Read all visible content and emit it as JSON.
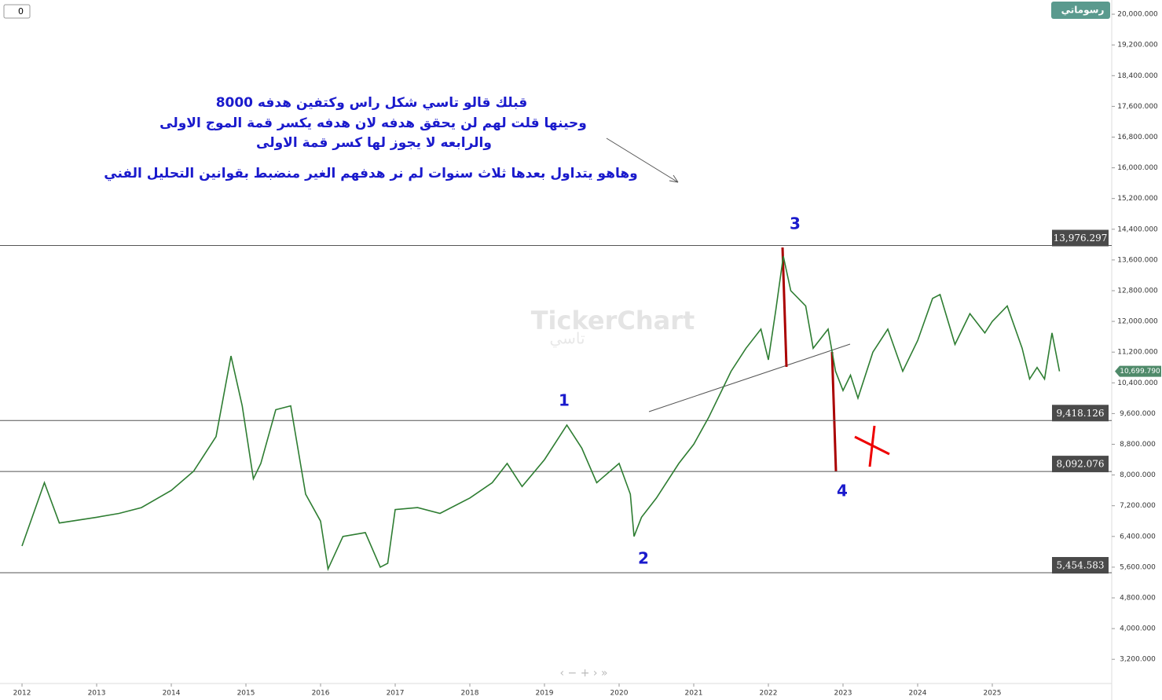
{
  "chart_data": {
    "type": "line",
    "x": [
      2012.0,
      2012.3,
      2012.5,
      2013.0,
      2013.3,
      2013.6,
      2014.0,
      2014.3,
      2014.6,
      2014.8,
      2014.95,
      2015.1,
      2015.2,
      2015.4,
      2015.6,
      2015.8,
      2016.0,
      2016.1,
      2016.3,
      2016.6,
      2016.8,
      2016.9,
      2017.0,
      2017.3,
      2017.6,
      2018.0,
      2018.3,
      2018.5,
      2018.7,
      2019.0,
      2019.3,
      2019.5,
      2019.7,
      2020.0,
      2020.15,
      2020.2,
      2020.3,
      2020.5,
      2020.8,
      2021.0,
      2021.2,
      2021.5,
      2021.7,
      2021.9,
      2022.0,
      2022.1,
      2022.2,
      2022.3,
      2022.5,
      2022.6,
      2022.8,
      2022.9,
      2023.0,
      2023.1,
      2023.2,
      2023.4,
      2023.6,
      2023.8,
      2024.0,
      2024.2,
      2024.3,
      2024.5,
      2024.7,
      2024.9,
      2025.0,
      2025.2,
      2025.4,
      2025.5,
      2025.6,
      2025.7,
      2025.8,
      2025.9
    ],
    "values": [
      6150,
      7800,
      6750,
      6900,
      7000,
      7150,
      7600,
      8100,
      9000,
      11100,
      9800,
      7900,
      8300,
      9700,
      9800,
      7500,
      6800,
      5550,
      6400,
      6500,
      5600,
      5700,
      7100,
      7150,
      7000,
      7400,
      7800,
      8300,
      7700,
      8400,
      9300,
      8700,
      7800,
      8300,
      7500,
      6400,
      6900,
      7400,
      8300,
      8800,
      9500,
      10700,
      11300,
      11800,
      11000,
      12300,
      13700,
      12800,
      12400,
      11300,
      11800,
      10700,
      10200,
      10600,
      10000,
      11200,
      11800,
      10700,
      11500,
      12600,
      12700,
      11400,
      12200,
      11700,
      12000,
      12400,
      11300,
      10500,
      10800,
      10500,
      11700,
      10700
    ],
    "color": "#2e7d32",
    "xlim": [
      2011.705,
      2026.6
    ],
    "xticks": [
      2012,
      2013,
      2014,
      2015,
      2016,
      2017,
      2018,
      2019,
      2020,
      2021,
      2022,
      2023,
      2024,
      2025
    ],
    "ylim": [
      2570,
      20370
    ],
    "yticks": [
      {
        "value": 3200,
        "label": "3,200.000"
      },
      {
        "value": 4000,
        "label": "4,000.000"
      },
      {
        "value": 4800,
        "label": "4,800.000"
      },
      {
        "value": 5600,
        "label": "5,600.000"
      },
      {
        "value": 6400,
        "label": "6,400.000"
      },
      {
        "value": 7200,
        "label": "7,200.000"
      },
      {
        "value": 8000,
        "label": "8,000.000"
      },
      {
        "value": 8800,
        "label": "8,800.000"
      },
      {
        "value": 9600,
        "label": "9,600.000"
      },
      {
        "value": 10400,
        "label": "10,400.000"
      },
      {
        "value": 11200,
        "label": "11,200.000"
      },
      {
        "value": 12000,
        "label": "12,000.000"
      },
      {
        "value": 12800,
        "label": "12,800.000"
      },
      {
        "value": 13600,
        "label": "13,600.000"
      },
      {
        "value": 14400,
        "label": "14,400.000"
      },
      {
        "value": 15200,
        "label": "15,200.000"
      },
      {
        "value": 16000,
        "label": "16,000.000"
      },
      {
        "value": 16800,
        "label": "16,800.000"
      },
      {
        "value": 17600,
        "label": "17,600.000"
      },
      {
        "value": 18400,
        "label": "18,400.000"
      },
      {
        "value": 19200,
        "label": "19,200.000"
      },
      {
        "value": 20000,
        "label": "20,000.000"
      }
    ],
    "levels": [
      {
        "value": 13976.297,
        "label": "13,976.297"
      },
      {
        "value": 9418.126,
        "label": "9,418.126"
      },
      {
        "value": 8092.076,
        "label": "8,092.076"
      },
      {
        "value": 5454.583,
        "label": "5,454.583"
      }
    ],
    "last_price": {
      "value": 10699.79,
      "label": "10,699.790"
    },
    "annotations": [
      "قبلك قالو تاسي شكل راس وكتفين هدفه 8000",
      "وحينها قلت لهم لن يحقق هدفه لان هدفه يكسر قمة الموج الاولى",
      "والرابعه لا يجوز لها كسر قمة الاولى",
      "وهاهو يتداول بعدها ثلاث سنوات لم نر هدفهم الغير منضبط بقوانين التحليل الفني"
    ],
    "wave_labels": [
      "1",
      "2",
      "3",
      "4"
    ]
  },
  "ui": {
    "input_value": "0",
    "badge": "رسوماتي",
    "watermark": "TickerChart",
    "watermark_sub": "تاسي"
  }
}
